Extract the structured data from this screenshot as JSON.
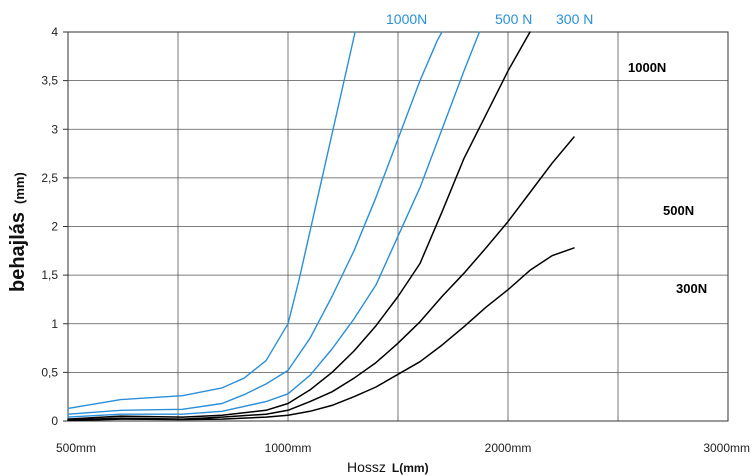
{
  "chart_data": {
    "type": "line",
    "title": "",
    "ylabel": "behajlás",
    "ylabel_unit": "(mm)",
    "xlabel": "Hossz",
    "xlabel_unit": "L(mm)",
    "xlim": [
      500,
      3000
    ],
    "ylim": [
      0,
      4
    ],
    "grid": true,
    "x_ticks": [
      {
        "value": 500,
        "label": "500mm"
      },
      {
        "value": 1000,
        "label": "1000mm"
      },
      {
        "value": 2000,
        "label": "2000mm"
      },
      {
        "value": 3000,
        "label": "3000mm"
      }
    ],
    "x_gridlines": [
      1000,
      1500,
      2000,
      2500
    ],
    "y_ticks": [
      {
        "value": 0,
        "label": "0"
      },
      {
        "value": 0.5,
        "label": "0,5"
      },
      {
        "value": 1,
        "label": "1"
      },
      {
        "value": 1.5,
        "label": "1,5"
      },
      {
        "value": 2,
        "label": "2"
      },
      {
        "value": 2.5,
        "label": "2,5"
      },
      {
        "value": 3,
        "label": "3"
      },
      {
        "value": 3.5,
        "label": "3,5"
      },
      {
        "value": 4,
        "label": "4"
      }
    ],
    "series": [
      {
        "name": "1000N",
        "group": "blue",
        "color": "#2b8fd8",
        "points": [
          [
            500,
            0.13
          ],
          [
            620,
            0.22
          ],
          [
            760,
            0.26
          ],
          [
            850,
            0.34
          ],
          [
            900,
            0.44
          ],
          [
            950,
            0.62
          ],
          [
            1000,
            1.0
          ],
          [
            1050,
            1.45
          ],
          [
            1100,
            1.95
          ],
          [
            1150,
            2.45
          ],
          [
            1200,
            2.95
          ],
          [
            1250,
            3.45
          ],
          [
            1290,
            3.85
          ],
          [
            1305,
            4.0
          ]
        ]
      },
      {
        "name": "500 N",
        "group": "blue",
        "color": "#2b8fd8",
        "points": [
          [
            500,
            0.07
          ],
          [
            620,
            0.11
          ],
          [
            760,
            0.12
          ],
          [
            850,
            0.18
          ],
          [
            900,
            0.27
          ],
          [
            950,
            0.38
          ],
          [
            1000,
            0.52
          ],
          [
            1100,
            0.85
          ],
          [
            1200,
            1.28
          ],
          [
            1300,
            1.75
          ],
          [
            1400,
            2.3
          ],
          [
            1500,
            2.9
          ],
          [
            1600,
            3.5
          ],
          [
            1680,
            3.92
          ],
          [
            1700,
            4.0
          ]
        ]
      },
      {
        "name": "300 N",
        "group": "blue",
        "color": "#2b8fd8",
        "points": [
          [
            500,
            0.04
          ],
          [
            620,
            0.07
          ],
          [
            760,
            0.07
          ],
          [
            850,
            0.1
          ],
          [
            950,
            0.2
          ],
          [
            1000,
            0.28
          ],
          [
            1100,
            0.47
          ],
          [
            1200,
            0.74
          ],
          [
            1300,
            1.05
          ],
          [
            1400,
            1.4
          ],
          [
            1500,
            1.9
          ],
          [
            1600,
            2.4
          ],
          [
            1700,
            3.0
          ],
          [
            1800,
            3.6
          ],
          [
            1870,
            4.0
          ]
        ]
      },
      {
        "name": "1000N",
        "group": "black",
        "color": "#000000",
        "points": [
          [
            500,
            0.02
          ],
          [
            620,
            0.05
          ],
          [
            760,
            0.04
          ],
          [
            850,
            0.06
          ],
          [
            950,
            0.11
          ],
          [
            1000,
            0.18
          ],
          [
            1100,
            0.32
          ],
          [
            1200,
            0.5
          ],
          [
            1300,
            0.72
          ],
          [
            1400,
            0.98
          ],
          [
            1500,
            1.28
          ],
          [
            1600,
            1.62
          ],
          [
            1700,
            2.15
          ],
          [
            1800,
            2.7
          ],
          [
            1900,
            3.15
          ],
          [
            2000,
            3.6
          ],
          [
            2100,
            4.0
          ]
        ]
      },
      {
        "name": "500N",
        "group": "black",
        "color": "#000000",
        "points": [
          [
            500,
            0.01
          ],
          [
            620,
            0.03
          ],
          [
            760,
            0.02
          ],
          [
            850,
            0.04
          ],
          [
            950,
            0.07
          ],
          [
            1000,
            0.11
          ],
          [
            1100,
            0.2
          ],
          [
            1200,
            0.3
          ],
          [
            1300,
            0.44
          ],
          [
            1400,
            0.6
          ],
          [
            1500,
            0.8
          ],
          [
            1600,
            1.02
          ],
          [
            1700,
            1.28
          ],
          [
            1800,
            1.52
          ],
          [
            1900,
            1.78
          ],
          [
            2000,
            2.05
          ],
          [
            2100,
            2.35
          ],
          [
            2200,
            2.65
          ],
          [
            2300,
            2.92
          ]
        ]
      },
      {
        "name": "300N",
        "group": "black",
        "color": "#000000",
        "points": [
          [
            500,
            0.005
          ],
          [
            620,
            0.02
          ],
          [
            760,
            0.015
          ],
          [
            850,
            0.02
          ],
          [
            950,
            0.04
          ],
          [
            1000,
            0.06
          ],
          [
            1100,
            0.1
          ],
          [
            1200,
            0.16
          ],
          [
            1300,
            0.25
          ],
          [
            1400,
            0.35
          ],
          [
            1500,
            0.48
          ],
          [
            1600,
            0.61
          ],
          [
            1700,
            0.78
          ],
          [
            1800,
            0.97
          ],
          [
            1900,
            1.17
          ],
          [
            2000,
            1.35
          ],
          [
            2100,
            1.55
          ],
          [
            2200,
            1.7
          ],
          [
            2300,
            1.78
          ]
        ]
      }
    ]
  }
}
